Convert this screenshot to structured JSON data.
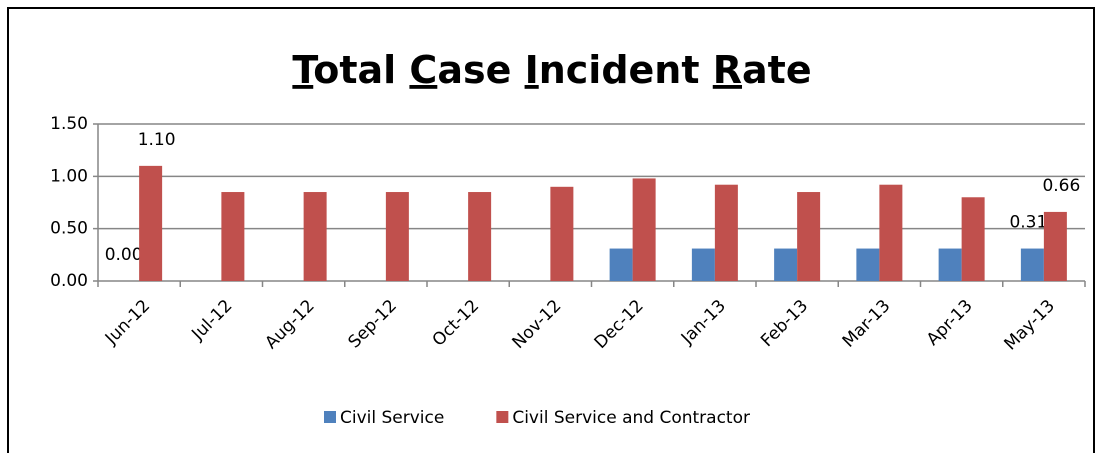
{
  "chart_data": {
    "type": "bar",
    "title": "Total Case Incident Rate",
    "categories": [
      "Jun-12",
      "Jul-12",
      "Aug-12",
      "Sep-12",
      "Oct-12",
      "Nov-12",
      "Dec-12",
      "Jan-13",
      "Feb-13",
      "Mar-13",
      "Apr-13",
      "May-13"
    ],
    "series": [
      {
        "name": "Civil Service",
        "color": "#4f81bd",
        "values": [
          0,
          0,
          0,
          0,
          0,
          0,
          0.31,
          0.31,
          0.31,
          0.31,
          0.31,
          0.31
        ],
        "value_labels": [
          "0.00",
          null,
          null,
          null,
          null,
          null,
          null,
          null,
          null,
          null,
          null,
          "0.31"
        ]
      },
      {
        "name": "Civil Service and Contractor",
        "color": "#c0504d",
        "values": [
          1.1,
          0.85,
          0.85,
          0.85,
          0.85,
          0.9,
          0.98,
          0.92,
          0.85,
          0.92,
          0.8,
          0.66
        ],
        "value_labels": [
          "1.10",
          null,
          null,
          null,
          null,
          null,
          null,
          null,
          null,
          null,
          null,
          "0.66"
        ]
      }
    ],
    "ylim": [
      0,
      1.5
    ],
    "yticks": [
      {
        "value": 0,
        "label": "0.00"
      },
      {
        "value": 0.5,
        "label": "0.50"
      },
      {
        "value": 1,
        "label": "1.00"
      },
      {
        "value": 1.5,
        "label": "1.50"
      }
    ],
    "grid": true,
    "legend": "bottom"
  }
}
